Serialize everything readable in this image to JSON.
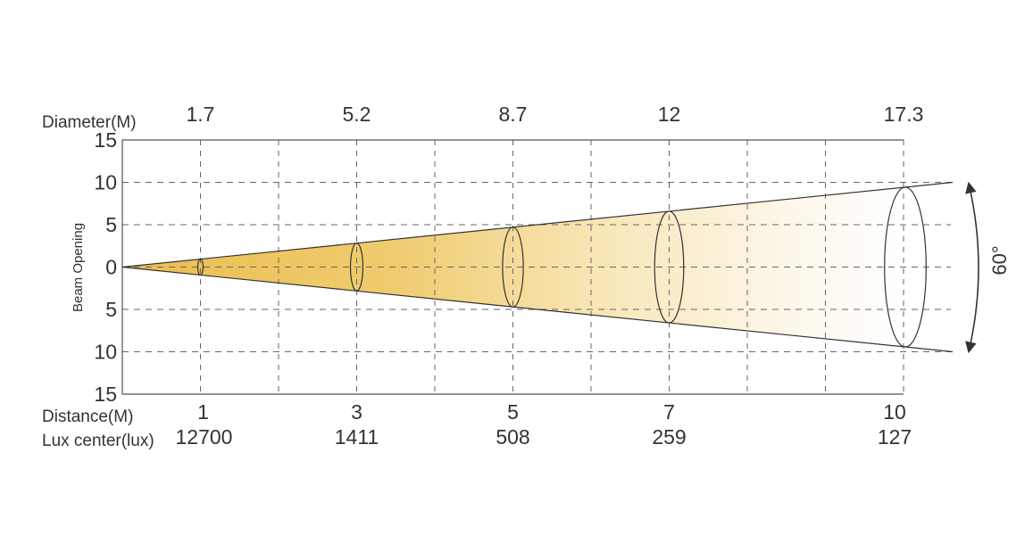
{
  "labels": {
    "diameter": "Diameter(M)",
    "distance": "Distance(M)",
    "lux": "Lux center(lux)",
    "y_axis": "Beam Opening",
    "angle": "60°"
  },
  "y_ticks": [
    "15",
    "10",
    "5",
    "0",
    "5",
    "10",
    "15"
  ],
  "beam_angle_deg": 60,
  "x_range_m": [
    0,
    10
  ],
  "y_range": [
    -15,
    15
  ],
  "points": [
    {
      "distance": "1",
      "diameter": "1.7",
      "lux": "12700"
    },
    {
      "distance": "3",
      "diameter": "5.2",
      "lux": "1411"
    },
    {
      "distance": "5",
      "diameter": "8.7",
      "lux": "508"
    },
    {
      "distance": "7",
      "diameter": "12",
      "lux": "259"
    },
    {
      "distance": "10",
      "diameter": "17.3",
      "lux": "127"
    }
  ],
  "colors": {
    "beam_start": "#ebbd4f",
    "beam_end": "#ffffff",
    "line": "#333333",
    "grid": "#666666"
  }
}
